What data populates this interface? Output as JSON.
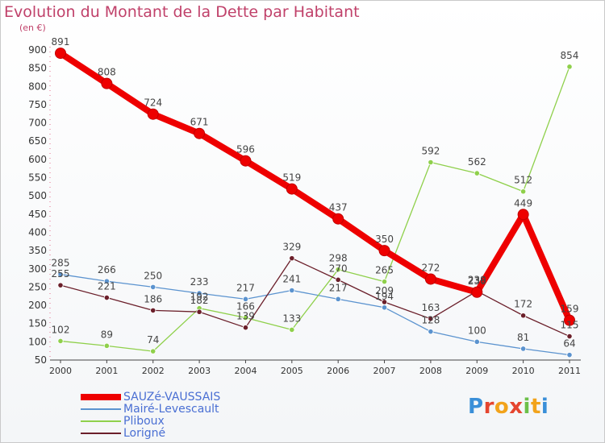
{
  "title": "Evolution du Montant de la Dette par Habitant",
  "unit": "(en €)",
  "logo": "Proxiti",
  "colors": {
    "title": "#c0416a",
    "axis": "#333333",
    "grid": "#d8d8d8",
    "legend_text": "#4a6fd3"
  },
  "chart_data": {
    "type": "line",
    "title": "Evolution du Montant de la Dette par Habitant",
    "ylabel": "(en €)",
    "xlabel": "",
    "ylim": [
      50,
      900
    ],
    "yticks": [
      50,
      100,
      150,
      200,
      250,
      300,
      350,
      400,
      450,
      500,
      550,
      600,
      650,
      700,
      750,
      800,
      850,
      900
    ],
    "grid": false,
    "legend_position": "bottom-left",
    "categories": [
      "2000",
      "2001",
      "2002",
      "2003",
      "2004",
      "2005",
      "2006",
      "2007",
      "2008",
      "2009",
      "2010",
      "2011"
    ],
    "series": [
      {
        "name": "SAUZé-VAUSSAIS",
        "color": "#ee0000",
        "width": 8,
        "values": [
          891,
          808,
          724,
          671,
          596,
          519,
          437,
          350,
          272,
          236,
          449,
          159
        ]
      },
      {
        "name": "Mairé-Levescault",
        "color": "#5b93cf",
        "width": 1.3,
        "values": [
          285,
          266,
          250,
          233,
          217,
          241,
          217,
          194,
          128,
          100,
          81,
          64
        ]
      },
      {
        "name": "Pliboux",
        "color": "#8fd04b",
        "width": 1.3,
        "values": [
          102,
          89,
          74,
          192,
          166,
          133,
          298,
          265,
          592,
          562,
          512,
          854
        ]
      },
      {
        "name": "Lorigné",
        "color": "#6b1f2a",
        "width": 1.3,
        "values": [
          255,
          221,
          186,
          182,
          139,
          329,
          270,
          209,
          163,
          239,
          172,
          115
        ]
      }
    ]
  }
}
